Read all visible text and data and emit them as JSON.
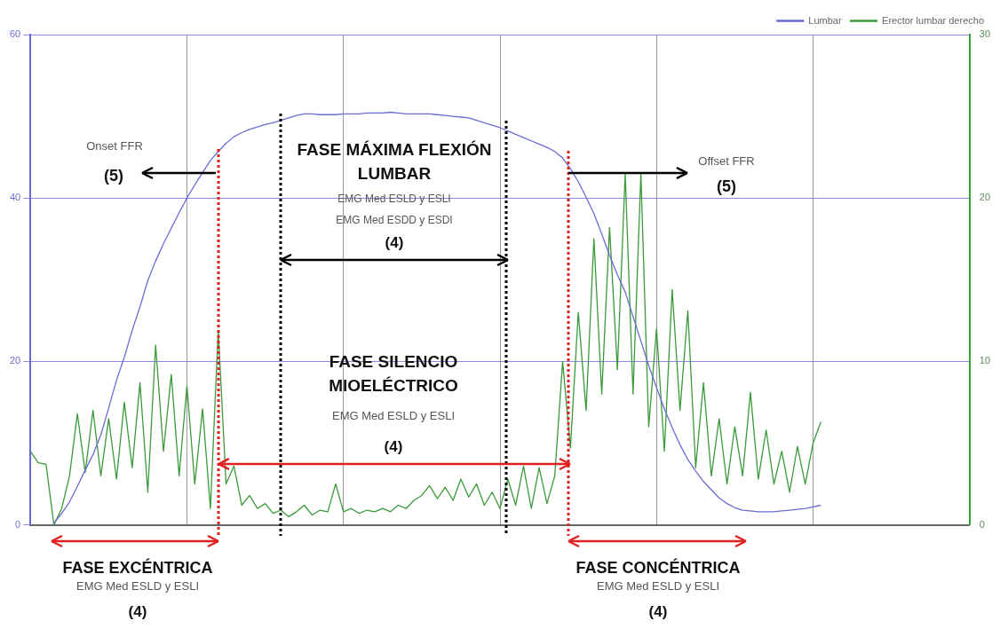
{
  "chart_data": {
    "type": "line",
    "annotations": [
      "Onset FFR",
      "(5)",
      "FASE MÁXIMA FLEXIÓN LUMBAR",
      "EMG Med ESLD y ESLI",
      "EMG Med ESDD y ESDI",
      "(4)",
      "Offset FFR",
      "(5)",
      "FASE SILENCIO MIOELÉCTRICO",
      "EMG Med ESLD y ESLI",
      "(4)",
      "FASE EXCÉNTRICA",
      "EMG Med ESLD y ESLI",
      "(4)",
      "FASE CONCÉNTRICA",
      "EMG Med ESLD y ESLI",
      "(4)"
    ],
    "categories": [
      null,
      null,
      null,
      null,
      null,
      null,
      null,
      null,
      null,
      null,
      null,
      null,
      null,
      null,
      null,
      null,
      null,
      null,
      null,
      null,
      null,
      null,
      null,
      null,
      null,
      null,
      null,
      null,
      null,
      null,
      null,
      null,
      null,
      null,
      null,
      null,
      null,
      null,
      null,
      null,
      null,
      null,
      null,
      null,
      null,
      null,
      null,
      null,
      null,
      null,
      null,
      null,
      null,
      null,
      null,
      null,
      null,
      null,
      null,
      null,
      null,
      null,
      null,
      null,
      null,
      null,
      null,
      null,
      null,
      null,
      null,
      null,
      null,
      null,
      null,
      null,
      null,
      null,
      null,
      null,
      null,
      null,
      null,
      null,
      null,
      null,
      null,
      null,
      null,
      null,
      null,
      null,
      null,
      null,
      null,
      null,
      null,
      null,
      null,
      null,
      null,
      null,
      null,
      null,
      null,
      null,
      null,
      null,
      null,
      null,
      null,
      null,
      null,
      null,
      null,
      null,
      null,
      null,
      null,
      null,
      null
    ],
    "series": [
      {
        "name": "Lumbar",
        "color": "#6b6bd6",
        "axis": "y",
        "values": [
          null,
          null,
          null,
          0.2,
          1.4,
          2.8,
          4.7,
          6.7,
          8.6,
          11.0,
          14.3,
          17.7,
          20.5,
          23.8,
          26.7,
          29.9,
          32.3,
          34.4,
          36.3,
          38.2,
          40.0,
          41.6,
          43.1,
          44.6,
          45.7,
          46.7,
          47.5,
          48.0,
          48.4,
          48.7,
          49.0,
          49.2,
          49.5,
          49.8,
          50.1,
          50.3,
          50.3,
          50.2,
          50.2,
          50.2,
          50.3,
          50.3,
          50.3,
          50.4,
          50.4,
          50.4,
          50.5,
          50.4,
          50.3,
          50.3,
          50.3,
          50.3,
          50.2,
          50.1,
          50.0,
          49.9,
          49.8,
          49.5,
          49.2,
          48.9,
          48.6,
          48.2,
          47.8,
          47.4,
          47.0,
          46.6,
          46.2,
          45.7,
          44.9,
          43.6,
          42.0,
          40.1,
          38.1,
          35.6,
          33.0,
          30.6,
          28.5,
          25.5,
          22.5,
          19.5,
          16.8,
          14.2,
          11.9,
          9.8,
          8.0,
          6.6,
          5.3,
          4.3,
          3.3,
          2.6,
          2.1,
          1.8,
          1.7,
          1.6,
          1.6,
          1.6,
          1.7,
          1.8,
          1.9,
          2.0,
          2.2,
          2.4,
          null,
          null,
          null,
          null,
          null,
          null,
          null,
          null,
          null,
          null,
          null,
          null,
          null,
          null,
          null,
          null,
          null,
          null,
          null
        ]
      },
      {
        "name": "Erector lumbar derecho",
        "color": "#3a9a3a",
        "axis": "y2",
        "values": [
          4.5,
          3.8,
          3.7,
          0,
          1.0,
          3.0,
          6.8,
          3.2,
          7.0,
          3.0,
          6.5,
          2.8,
          7.5,
          3.5,
          8.7,
          2.0,
          11.0,
          4.5,
          9.2,
          3.0,
          8.5,
          2.5,
          7.1,
          1.0,
          11.9,
          2.5,
          3.6,
          1.2,
          1.8,
          1.0,
          1.3,
          0.7,
          0.9,
          0.5,
          0.8,
          1.2,
          0.6,
          0.9,
          0.8,
          2.5,
          0.8,
          1.0,
          0.7,
          0.9,
          0.8,
          1.0,
          0.8,
          1.2,
          1.0,
          1.5,
          1.8,
          2.4,
          1.6,
          2.3,
          1.5,
          2.8,
          1.7,
          2.5,
          1.2,
          2.0,
          1.0,
          2.8,
          1.2,
          3.6,
          1.0,
          3.5,
          1.3,
          3.0,
          10.0,
          4.7,
          13.0,
          7.0,
          17.5,
          8.0,
          18.2,
          9.5,
          21.5,
          8.0,
          21.5,
          6.0,
          12.0,
          4.5,
          14.4,
          7.0,
          13.1,
          3.5,
          8.7,
          3.0,
          6.5,
          2.5,
          6.0,
          3.0,
          8.1,
          2.8,
          5.8,
          2.5,
          4.5,
          2.0,
          4.8,
          2.5,
          5.0,
          6.3,
          null,
          null,
          null,
          null,
          null,
          null,
          null,
          null,
          null,
          null,
          null,
          null,
          null,
          null,
          null,
          null,
          null,
          null,
          null
        ]
      }
    ],
    "ylim": [
      0,
      60
    ],
    "yticks": [
      0,
      20,
      40,
      60
    ],
    "y2lim": [
      0,
      30
    ],
    "y2ticks": [
      0,
      10,
      20,
      30
    ],
    "grid": true,
    "legend": "top right",
    "marker": "none",
    "line_style": "solid"
  }
}
